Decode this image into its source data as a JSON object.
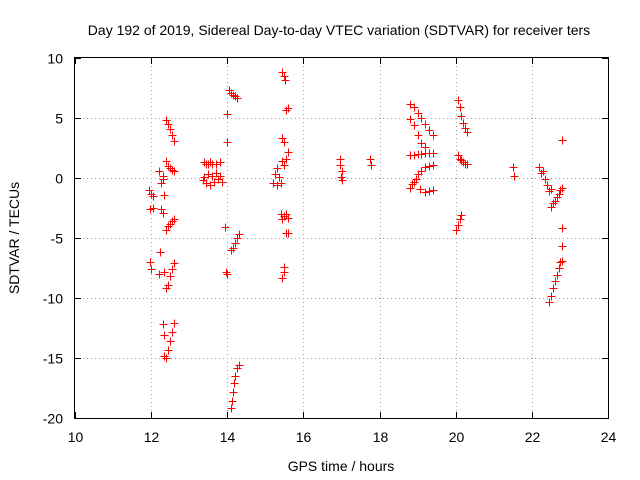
{
  "chart_data": {
    "type": "scatter",
    "title": "Day 192 of 2019, Sidereal Day-to-day VTEC variation (SDTVAR) for receiver ters",
    "xlabel": "GPS time / hours",
    "ylabel": "SDTVAR / TECUs",
    "xlim": [
      10,
      24
    ],
    "ylim": [
      -20,
      10
    ],
    "xticks": [
      10,
      12,
      14,
      16,
      18,
      20,
      22,
      24
    ],
    "yticks": [
      -20,
      -15,
      -10,
      -5,
      0,
      5,
      10
    ],
    "grid": true,
    "marker": "+",
    "marker_color": "#ff0000",
    "series": [
      {
        "name": "SDTVAR",
        "points": [
          [
            11.95,
            -1.0
          ],
          [
            12.0,
            -1.3
          ],
          [
            12.05,
            -1.5
          ],
          [
            11.97,
            -2.6
          ],
          [
            12.05,
            -2.5
          ],
          [
            12.25,
            -2.6
          ],
          [
            12.3,
            -2.9
          ],
          [
            12.2,
            0.6
          ],
          [
            12.25,
            -0.4
          ],
          [
            12.3,
            0.2
          ],
          [
            12.35,
            -1.4
          ],
          [
            12.3,
            -0.1
          ],
          [
            11.97,
            -7.0
          ],
          [
            12.0,
            -7.6
          ],
          [
            12.2,
            -8.0
          ],
          [
            12.22,
            -6.2
          ],
          [
            12.35,
            -7.8
          ],
          [
            12.4,
            4.8
          ],
          [
            12.45,
            4.5
          ],
          [
            12.5,
            4.1
          ],
          [
            12.55,
            3.6
          ],
          [
            12.6,
            3.1
          ],
          [
            12.4,
            1.4
          ],
          [
            12.45,
            1.0
          ],
          [
            12.5,
            0.8
          ],
          [
            12.55,
            0.7
          ],
          [
            12.6,
            0.6
          ],
          [
            12.4,
            -4.3
          ],
          [
            12.45,
            -4.0
          ],
          [
            12.5,
            -3.8
          ],
          [
            12.55,
            -3.6
          ],
          [
            12.6,
            -3.4
          ],
          [
            12.4,
            -9.2
          ],
          [
            12.45,
            -8.9
          ],
          [
            12.5,
            -8.2
          ],
          [
            12.55,
            -7.6
          ],
          [
            12.6,
            -7.1
          ],
          [
            12.3,
            -12.2
          ],
          [
            12.35,
            -13.1
          ],
          [
            12.35,
            -14.8
          ],
          [
            12.4,
            -15.0
          ],
          [
            12.45,
            -14.3
          ],
          [
            12.5,
            -13.6
          ],
          [
            12.55,
            -12.8
          ],
          [
            12.6,
            -12.1
          ],
          [
            13.4,
            1.3
          ],
          [
            13.45,
            1.2
          ],
          [
            13.5,
            1.2
          ],
          [
            13.55,
            1.3
          ],
          [
            13.6,
            1.2
          ],
          [
            13.7,
            1.2
          ],
          [
            13.8,
            1.3
          ],
          [
            13.35,
            -0.2
          ],
          [
            13.4,
            0.1
          ],
          [
            13.45,
            -0.4
          ],
          [
            13.5,
            0.3
          ],
          [
            13.55,
            -0.6
          ],
          [
            13.6,
            0.2
          ],
          [
            13.65,
            -0.3
          ],
          [
            13.7,
            0.4
          ],
          [
            13.75,
            -0.1
          ],
          [
            13.8,
            0.2
          ],
          [
            13.85,
            -0.3
          ],
          [
            14.0,
            5.3
          ],
          [
            14.0,
            3.0
          ],
          [
            14.05,
            7.3
          ],
          [
            14.1,
            7.1
          ],
          [
            14.15,
            6.9
          ],
          [
            14.2,
            6.8
          ],
          [
            14.25,
            6.7
          ],
          [
            13.95,
            -4.1
          ],
          [
            13.97,
            -7.8
          ],
          [
            14.0,
            -8.0
          ],
          [
            14.1,
            -6.0
          ],
          [
            14.15,
            -5.8
          ],
          [
            14.2,
            -5.4
          ],
          [
            14.25,
            -5.0
          ],
          [
            14.3,
            -4.7
          ],
          [
            14.1,
            -19.2
          ],
          [
            14.12,
            -18.6
          ],
          [
            14.15,
            -17.8
          ],
          [
            14.18,
            -17.1
          ],
          [
            14.2,
            -16.5
          ],
          [
            14.25,
            -15.8
          ],
          [
            14.3,
            -15.6
          ],
          [
            15.2,
            -0.4
          ],
          [
            15.25,
            0.3
          ],
          [
            15.3,
            -0.6
          ],
          [
            15.35,
            0.1
          ],
          [
            15.4,
            -0.4
          ],
          [
            15.3,
            0.8
          ],
          [
            15.45,
            8.8
          ],
          [
            15.5,
            8.5
          ],
          [
            15.52,
            8.2
          ],
          [
            15.55,
            5.7
          ],
          [
            15.6,
            5.8
          ],
          [
            15.45,
            3.3
          ],
          [
            15.5,
            3.0
          ],
          [
            15.45,
            1.4
          ],
          [
            15.55,
            1.6
          ],
          [
            15.5,
            1.1
          ],
          [
            15.6,
            2.2
          ],
          [
            15.4,
            -3.0
          ],
          [
            15.45,
            -3.4
          ],
          [
            15.5,
            -3.2
          ],
          [
            15.55,
            -3.0
          ],
          [
            15.6,
            -3.3
          ],
          [
            15.55,
            -4.6
          ],
          [
            15.6,
            -4.6
          ],
          [
            15.45,
            -8.3
          ],
          [
            15.48,
            -7.8
          ],
          [
            15.5,
            -7.4
          ],
          [
            16.95,
            1.6
          ],
          [
            16.97,
            1.1
          ],
          [
            17.0,
            0.6
          ],
          [
            16.98,
            0.1
          ],
          [
            17.0,
            -0.2
          ],
          [
            17.75,
            1.6
          ],
          [
            17.77,
            1.1
          ],
          [
            18.8,
            6.2
          ],
          [
            18.9,
            5.9
          ],
          [
            19.0,
            5.4
          ],
          [
            19.1,
            5.0
          ],
          [
            19.2,
            4.5
          ],
          [
            19.3,
            4.0
          ],
          [
            19.4,
            3.6
          ],
          [
            18.8,
            4.9
          ],
          [
            18.9,
            4.4
          ],
          [
            19.0,
            3.6
          ],
          [
            19.1,
            2.9
          ],
          [
            19.2,
            2.6
          ],
          [
            18.8,
            1.9
          ],
          [
            18.9,
            1.9
          ],
          [
            19.0,
            2.0
          ],
          [
            19.1,
            2.0
          ],
          [
            19.2,
            2.1
          ],
          [
            19.3,
            2.1
          ],
          [
            19.4,
            2.1
          ],
          [
            18.8,
            -0.8
          ],
          [
            18.9,
            -0.3
          ],
          [
            19.0,
            0.3
          ],
          [
            19.1,
            0.6
          ],
          [
            19.2,
            0.9
          ],
          [
            19.3,
            1.0
          ],
          [
            19.4,
            1.1
          ],
          [
            18.85,
            -0.5
          ],
          [
            18.95,
            -0.1
          ],
          [
            19.05,
            -0.9
          ],
          [
            19.2,
            -1.2
          ],
          [
            19.3,
            -1.1
          ],
          [
            19.4,
            -1.0
          ],
          [
            20.05,
            6.5
          ],
          [
            20.1,
            5.9
          ],
          [
            20.15,
            5.2
          ],
          [
            20.2,
            4.6
          ],
          [
            20.25,
            4.2
          ],
          [
            20.3,
            3.8
          ],
          [
            20.05,
            1.9
          ],
          [
            20.1,
            1.6
          ],
          [
            20.15,
            1.5
          ],
          [
            20.2,
            1.3
          ],
          [
            20.25,
            1.2
          ],
          [
            20.3,
            1.2
          ],
          [
            20.0,
            -4.3
          ],
          [
            20.05,
            -3.9
          ],
          [
            20.1,
            -3.4
          ],
          [
            20.15,
            -3.1
          ],
          [
            21.5,
            0.9
          ],
          [
            21.52,
            0.2
          ],
          [
            22.2,
            0.9
          ],
          [
            22.25,
            0.4
          ],
          [
            22.3,
            0.6
          ],
          [
            22.35,
            -0.1
          ],
          [
            22.4,
            -0.6
          ],
          [
            22.45,
            -1.1
          ],
          [
            22.5,
            -0.9
          ],
          [
            22.5,
            -2.4
          ],
          [
            22.55,
            -2.1
          ],
          [
            22.6,
            -1.9
          ],
          [
            22.65,
            -1.6
          ],
          [
            22.7,
            -1.3
          ],
          [
            22.75,
            -1.0
          ],
          [
            22.8,
            -0.8
          ],
          [
            22.8,
            3.2
          ],
          [
            22.78,
            -4.2
          ],
          [
            22.8,
            -5.7
          ],
          [
            22.45,
            -10.3
          ],
          [
            22.5,
            -9.8
          ],
          [
            22.55,
            -9.2
          ],
          [
            22.6,
            -8.6
          ],
          [
            22.65,
            -8.1
          ],
          [
            22.7,
            -7.5
          ],
          [
            22.75,
            -7.0
          ],
          [
            22.8,
            -6.9
          ]
        ]
      }
    ]
  }
}
